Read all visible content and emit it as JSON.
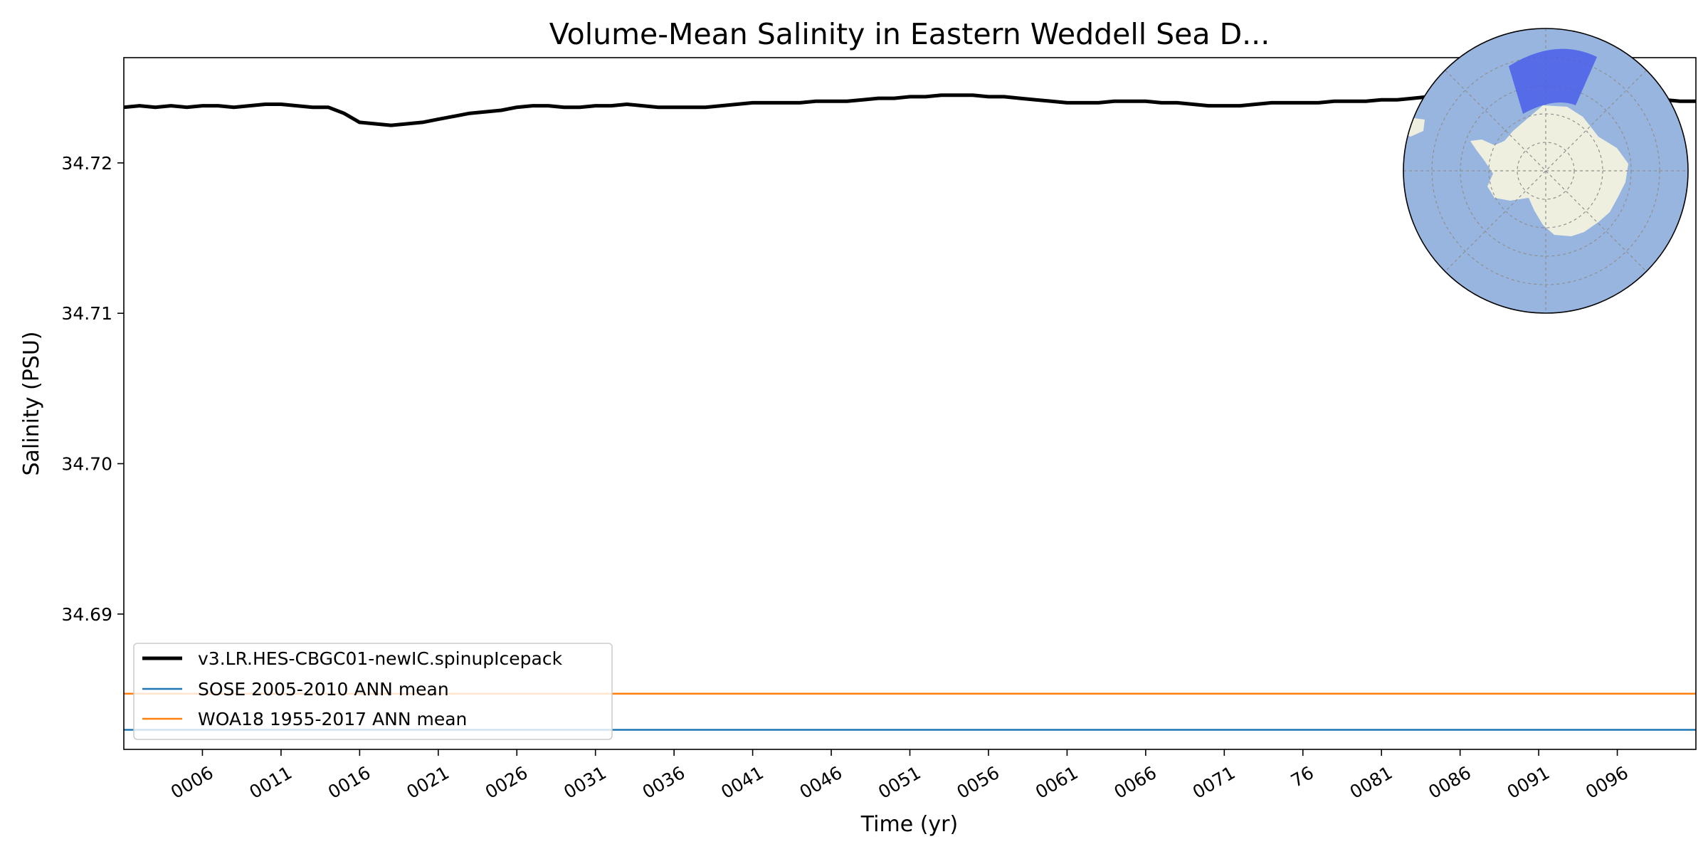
{
  "chart_data": {
    "type": "line",
    "title": "Volume-Mean Salinity in Eastern Weddell Sea D...",
    "xlabel": "Time (yr)",
    "ylabel": "Salinity (PSU)",
    "xlim": [
      1,
      101
    ],
    "ylim": [
      34.681,
      34.727
    ],
    "x_ticks": [
      6,
      11,
      16,
      21,
      26,
      31,
      36,
      41,
      46,
      51,
      56,
      61,
      66,
      71,
      76,
      81,
      86,
      91,
      96
    ],
    "x_tick_labels": [
      "0006",
      "0011",
      "0016",
      "0021",
      "0026",
      "0031",
      "0036",
      "0041",
      "0046",
      "0051",
      "0056",
      "0061",
      "0066",
      "0071",
      "76",
      "0081",
      "0086",
      "0091",
      "0096"
    ],
    "y_ticks": [
      34.69,
      34.7,
      34.71,
      34.72
    ],
    "y_tick_labels": [
      "34.69",
      "34.70",
      "34.71",
      "34.72"
    ],
    "grid": false,
    "legend_position": "lower-left",
    "series": [
      {
        "name": "v3.LR.HES-CBGC01-newIC.spinupIcepack",
        "color": "#000000",
        "x": [
          1,
          2,
          3,
          4,
          5,
          6,
          7,
          8,
          9,
          10,
          11,
          12,
          13,
          14,
          15,
          16,
          17,
          18,
          19,
          20,
          21,
          22,
          23,
          24,
          25,
          26,
          27,
          28,
          29,
          30,
          31,
          32,
          33,
          34,
          35,
          36,
          37,
          38,
          39,
          40,
          41,
          42,
          43,
          44,
          45,
          46,
          47,
          48,
          49,
          50,
          51,
          52,
          53,
          54,
          55,
          56,
          57,
          58,
          59,
          60,
          61,
          62,
          63,
          64,
          65,
          66,
          67,
          68,
          69,
          70,
          71,
          72,
          73,
          74,
          75,
          76,
          77,
          78,
          79,
          80,
          81,
          82,
          83,
          84,
          85,
          86,
          87,
          88,
          89,
          90,
          91,
          92,
          93,
          94,
          95,
          96,
          97,
          98,
          99,
          100,
          101
        ],
        "values": [
          34.7237,
          34.7238,
          34.7237,
          34.7238,
          34.7237,
          34.7238,
          34.7238,
          34.7237,
          34.7238,
          34.7239,
          34.7239,
          34.7238,
          34.7237,
          34.7237,
          34.7233,
          34.7227,
          34.7226,
          34.7225,
          34.7226,
          34.7227,
          34.7229,
          34.7231,
          34.7233,
          34.7234,
          34.7235,
          34.7237,
          34.7238,
          34.7238,
          34.7237,
          34.7237,
          34.7238,
          34.7238,
          34.7239,
          34.7238,
          34.7237,
          34.7237,
          34.7237,
          34.7237,
          34.7238,
          34.7239,
          34.724,
          34.724,
          34.724,
          34.724,
          34.7241,
          34.7241,
          34.7241,
          34.7242,
          34.7243,
          34.7243,
          34.7244,
          34.7244,
          34.7245,
          34.7245,
          34.7245,
          34.7244,
          34.7244,
          34.7243,
          34.7242,
          34.7241,
          34.724,
          34.724,
          34.724,
          34.7241,
          34.7241,
          34.7241,
          34.724,
          34.724,
          34.7239,
          34.7238,
          34.7238,
          34.7238,
          34.7239,
          34.724,
          34.724,
          34.724,
          34.724,
          34.7241,
          34.7241,
          34.7241,
          34.7242,
          34.7242,
          34.7243,
          34.7244,
          34.7244,
          34.7245,
          34.7245,
          34.7245,
          34.7245,
          34.7245,
          34.7244,
          34.7244,
          34.7244,
          34.7243,
          34.7243,
          34.7243,
          34.7242,
          34.7242,
          34.7242,
          34.7241,
          34.7241
        ]
      },
      {
        "name": "SOSE 2005-2010 ANN mean",
        "color": "#1f77b4",
        "x": [
          1,
          101
        ],
        "values": [
          34.6823,
          34.6823
        ]
      },
      {
        "name": "WOA18 1955-2017 ANN mean",
        "color": "#ff7f0e",
        "x": [
          1,
          101
        ],
        "values": [
          34.6847,
          34.6847
        ]
      }
    ],
    "inset": {
      "type": "map",
      "ocean_color": "#98b5e0",
      "land_color": "#efefdf",
      "highlight_color": "#4a5ee8"
    }
  }
}
